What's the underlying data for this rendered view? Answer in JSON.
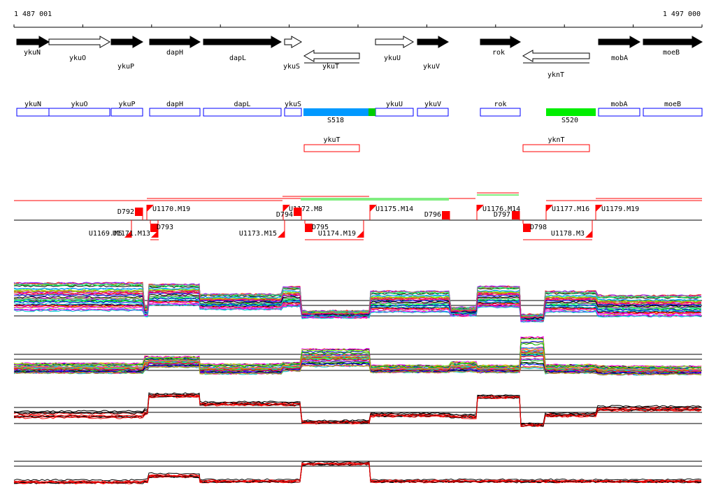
{
  "ruler": {
    "start_label": "1 487 001",
    "end_label": "1 497 000"
  },
  "genes": [
    {
      "name": "ykuN",
      "strand": "+",
      "filled": true
    },
    {
      "name": "ykuO",
      "strand": "+",
      "filled": false
    },
    {
      "name": "ykuP",
      "strand": "+",
      "filled": true
    },
    {
      "name": "dapH",
      "strand": "+",
      "filled": true
    },
    {
      "name": "dapL",
      "strand": "+",
      "filled": true
    },
    {
      "name": "ykuS",
      "strand": "+",
      "filled": false
    },
    {
      "name": "ykuT",
      "strand": "-",
      "filled": false
    },
    {
      "name": "ykuU",
      "strand": "+",
      "filled": false
    },
    {
      "name": "ykuV",
      "strand": "+",
      "filled": true
    },
    {
      "name": "rok",
      "strand": "+",
      "filled": true
    },
    {
      "name": "yknT",
      "strand": "-",
      "filled": false
    },
    {
      "name": "mobA",
      "strand": "+",
      "filled": true
    },
    {
      "name": "moeB",
      "strand": "+",
      "filled": true
    }
  ],
  "boxes": [
    "ykuN",
    "ykuO",
    "ykuP",
    "dapH",
    "dapL",
    "ykuS",
    "ykuU",
    "ykuV",
    "rok",
    "mobA",
    "moeB"
  ],
  "segments": [
    {
      "name": "S518",
      "color": "#0099ff"
    },
    {
      "name": "S520",
      "color": "#00ee00"
    }
  ],
  "antisense": [
    "ykuT",
    "yknT"
  ],
  "upstream_sites": [
    "U1170.M19",
    "U1172.M8",
    "U1175.M14",
    "U1176.M14",
    "U1177.M16",
    "U1179.M19"
  ],
  "downstream_sites": [
    "U1169.M5",
    "U1171.M13",
    "U1173.M15",
    "U1174.M19",
    "U1178.M3"
  ],
  "terminators": [
    "D792",
    "D793",
    "D794",
    "D795",
    "D796",
    "D797",
    "D798"
  ],
  "colors": {
    "gene_box": "#0000ff",
    "signal": "#ff0000",
    "antisense_box": "#ff0000"
  }
}
